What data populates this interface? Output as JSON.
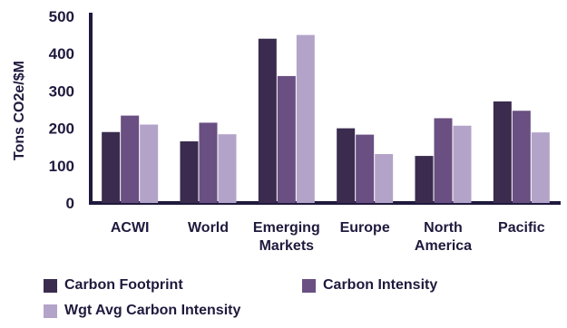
{
  "chart_data": {
    "type": "bar",
    "title": "",
    "xlabel": "",
    "ylabel": "Tons CO2e/$M",
    "ylim": [
      0,
      500
    ],
    "yticks": [
      0,
      100,
      200,
      300,
      400,
      500
    ],
    "categories": [
      [
        "ACWI"
      ],
      [
        "World"
      ],
      [
        "Emerging",
        "Markets"
      ],
      [
        "Europe"
      ],
      [
        "North",
        "America"
      ],
      [
        "Pacific"
      ]
    ],
    "series": [
      {
        "name": "Carbon Footprint",
        "color": "#3a2b4f",
        "values": [
          190,
          165,
          440,
          200,
          126,
          272
        ]
      },
      {
        "name": "Carbon Intensity",
        "color": "#6a4f82",
        "values": [
          234,
          215,
          340,
          183,
          227,
          247
        ]
      },
      {
        "name": "Wgt Avg Carbon Intensity",
        "color": "#b3a3c9",
        "values": [
          210,
          184,
          450,
          131,
          207,
          189
        ]
      }
    ],
    "grid": false,
    "legend_position": "bottom"
  }
}
